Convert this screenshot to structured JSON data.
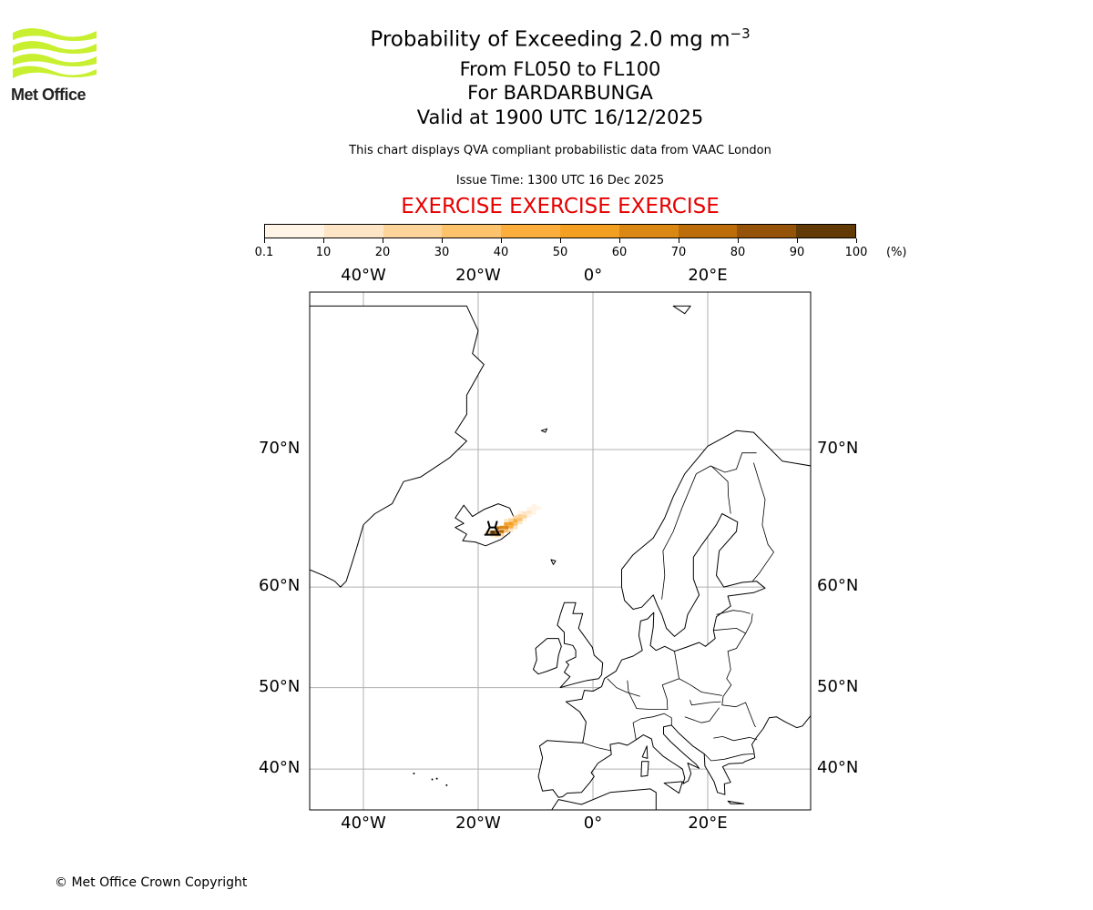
{
  "header": {
    "title_main": "Probability of Exceeding 2.0 mg m",
    "title_sup": "−3",
    "levels": "From FL050 to FL100",
    "volcano": "For BARDARBUNGA",
    "valid": "Valid at 1900 UTC 16/12/2025",
    "subtitle": "This chart displays QVA compliant probabilistic data from VAAC London",
    "issue_time": "Issue Time: 1300 UTC 16 Dec 2025",
    "exercise": "EXERCISE EXERCISE EXERCISE"
  },
  "logo": {
    "text": "Met Office",
    "color": "#c8f031"
  },
  "colorbar": {
    "labels": [
      "0.1",
      "10",
      "20",
      "30",
      "40",
      "50",
      "60",
      "70",
      "80",
      "90",
      "100"
    ],
    "unit": "(%)",
    "colors": [
      "#fff4e5",
      "#fee5c5",
      "#fdd49a",
      "#fdc26c",
      "#fcae3c",
      "#f39f22",
      "#db8714",
      "#bc6d0a",
      "#945308",
      "#623a05"
    ]
  },
  "map": {
    "lon_labels": [
      "40°W",
      "20°W",
      "0°",
      "20°E"
    ],
    "lon_values": [
      -40,
      -20,
      0,
      20
    ],
    "lat_labels": [
      "70°N",
      "60°N",
      "50°N",
      "40°N"
    ],
    "lat_values": [
      70,
      60,
      50,
      40
    ],
    "volcano_marker": {
      "lon": -17.5,
      "lat": 64.6
    },
    "plume_cells": [
      [
        -17.5,
        64.45,
        95
      ],
      [
        -16.7,
        64.45,
        85
      ],
      [
        -15.9,
        64.5,
        75
      ],
      [
        -16.7,
        64.75,
        70
      ],
      [
        -15.9,
        64.8,
        65
      ],
      [
        -15.1,
        64.8,
        60
      ],
      [
        -15.1,
        65.05,
        55
      ],
      [
        -14.3,
        65.1,
        50
      ],
      [
        -14.3,
        64.85,
        40
      ],
      [
        -13.5,
        65.3,
        45
      ],
      [
        -13.5,
        65.05,
        30
      ],
      [
        -12.7,
        65.4,
        35
      ],
      [
        -12.7,
        65.65,
        25
      ],
      [
        -11.9,
        65.6,
        20
      ],
      [
        -11.9,
        65.85,
        15
      ],
      [
        -11.1,
        65.9,
        12
      ],
      [
        -11.1,
        65.65,
        8
      ],
      [
        -10.3,
        66.1,
        6
      ],
      [
        -10.3,
        65.85,
        4
      ],
      [
        -9.5,
        66.2,
        3
      ],
      [
        -18.3,
        64.45,
        20
      ],
      [
        -17.5,
        64.2,
        15
      ],
      [
        -16.7,
        64.2,
        20
      ],
      [
        -15.9,
        64.25,
        25
      ],
      [
        -15.1,
        64.55,
        30
      ],
      [
        -14.3,
        64.6,
        15
      ],
      [
        -13.5,
        64.8,
        10
      ],
      [
        -12.7,
        65.15,
        12
      ],
      [
        -11.9,
        65.35,
        8
      ],
      [
        -13.5,
        65.55,
        20
      ],
      [
        -12.7,
        65.9,
        8
      ],
      [
        -11.1,
        66.15,
        5
      ],
      [
        -10.3,
        66.35,
        3
      ],
      [
        -14.3,
        65.35,
        25
      ],
      [
        -15.1,
        65.3,
        15
      ]
    ]
  },
  "footer": {
    "copyright": "© Met Office Crown Copyright"
  }
}
